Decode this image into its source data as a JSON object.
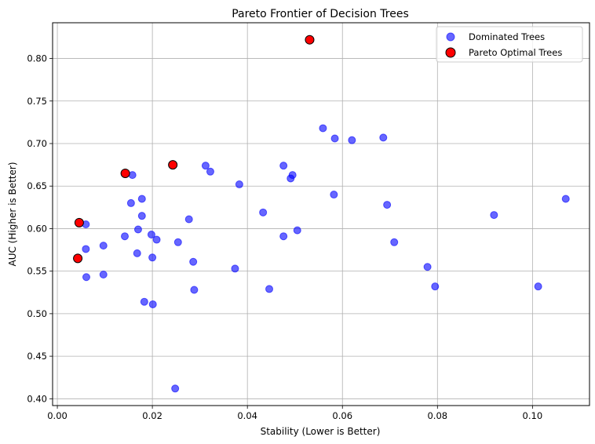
{
  "chart_data": {
    "type": "scatter",
    "title": "Pareto Frontier of Decision Trees",
    "xlabel": "Stability (Lower is Better)",
    "ylabel": "AUC (Higher is Better)",
    "xlim": [
      -0.001,
      0.112
    ],
    "ylim": [
      0.392,
      0.842
    ],
    "xticks": [
      0.0,
      0.02,
      0.04,
      0.06,
      0.08,
      0.1
    ],
    "xtick_labels": [
      "0.00",
      "0.02",
      "0.04",
      "0.06",
      "0.08",
      "0.10"
    ],
    "yticks": [
      0.4,
      0.45,
      0.5,
      0.55,
      0.6,
      0.65,
      0.7,
      0.75,
      0.8
    ],
    "ytick_labels": [
      "0.40",
      "0.45",
      "0.50",
      "0.55",
      "0.60",
      "0.65",
      "0.70",
      "0.75",
      "0.80"
    ],
    "grid": true,
    "legend_position": "top-right",
    "series": [
      {
        "name": "Dominated Trees",
        "color": "#0000ff",
        "marker": "circle",
        "points": [
          [
            0.006,
            0.605
          ],
          [
            0.006,
            0.576
          ],
          [
            0.0061,
            0.543
          ],
          [
            0.0097,
            0.58
          ],
          [
            0.0097,
            0.546
          ],
          [
            0.0142,
            0.591
          ],
          [
            0.0155,
            0.63
          ],
          [
            0.0158,
            0.663
          ],
          [
            0.0168,
            0.571
          ],
          [
            0.017,
            0.599
          ],
          [
            0.0178,
            0.635
          ],
          [
            0.0178,
            0.615
          ],
          [
            0.0183,
            0.514
          ],
          [
            0.0198,
            0.593
          ],
          [
            0.02,
            0.566
          ],
          [
            0.0201,
            0.511
          ],
          [
            0.0209,
            0.587
          ],
          [
            0.0248,
            0.412
          ],
          [
            0.0254,
            0.584
          ],
          [
            0.0277,
            0.611
          ],
          [
            0.0286,
            0.561
          ],
          [
            0.0288,
            0.528
          ],
          [
            0.0312,
            0.674
          ],
          [
            0.0322,
            0.667
          ],
          [
            0.0374,
            0.553
          ],
          [
            0.0383,
            0.652
          ],
          [
            0.0433,
            0.619
          ],
          [
            0.0446,
            0.529
          ],
          [
            0.0476,
            0.674
          ],
          [
            0.0476,
            0.591
          ],
          [
            0.0491,
            0.659
          ],
          [
            0.0495,
            0.663
          ],
          [
            0.0505,
            0.598
          ],
          [
            0.0559,
            0.718
          ],
          [
            0.0582,
            0.64
          ],
          [
            0.0584,
            0.706
          ],
          [
            0.062,
            0.704
          ],
          [
            0.0686,
            0.707
          ],
          [
            0.0694,
            0.628
          ],
          [
            0.0709,
            0.584
          ],
          [
            0.0779,
            0.555
          ],
          [
            0.0795,
            0.532
          ],
          [
            0.0919,
            0.616
          ],
          [
            0.1012,
            0.532
          ],
          [
            0.107,
            0.635
          ]
        ]
      },
      {
        "name": "Pareto Optimal Trees",
        "color": "#ff0000",
        "marker": "circle",
        "points": [
          [
            0.0043,
            0.565
          ],
          [
            0.0046,
            0.607
          ],
          [
            0.0143,
            0.665
          ],
          [
            0.0243,
            0.675
          ],
          [
            0.0531,
            0.822
          ]
        ]
      }
    ]
  }
}
